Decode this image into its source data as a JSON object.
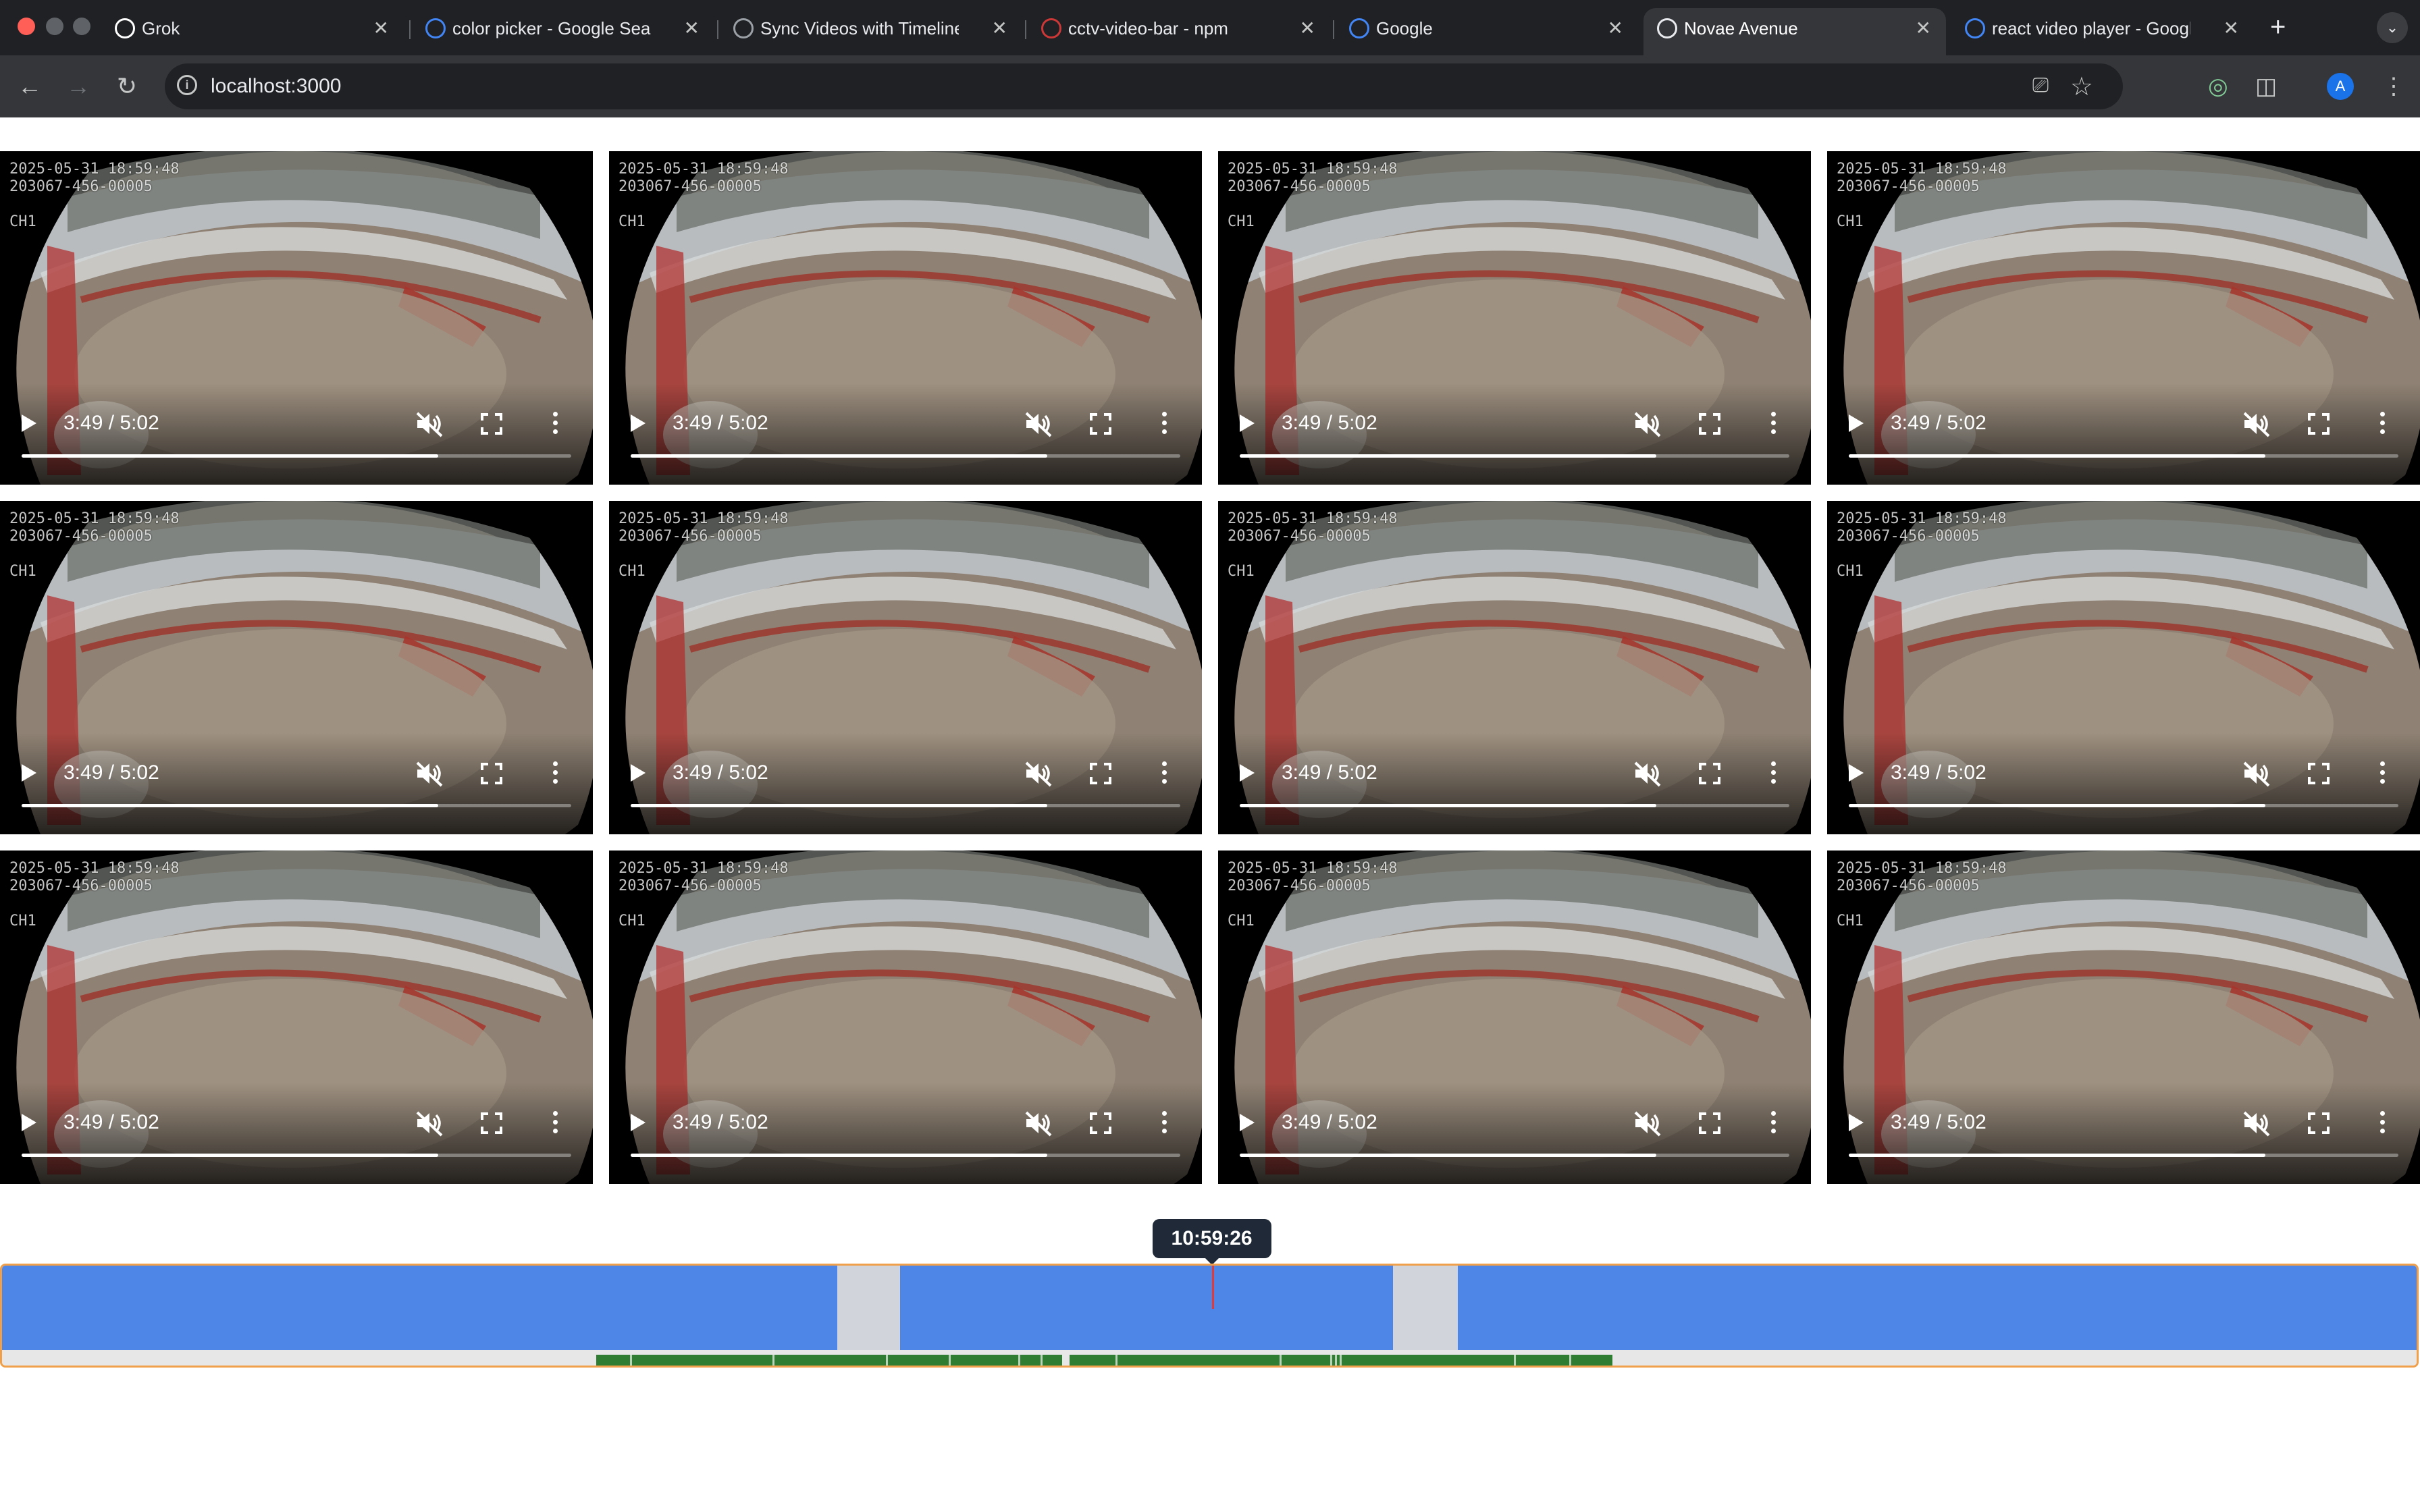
{
  "browser": {
    "tabs": [
      {
        "title": "Grok",
        "active": false
      },
      {
        "title": "color picker - Google Search",
        "active": false
      },
      {
        "title": "Sync Videos with Timeline",
        "active": false
      },
      {
        "title": "cctv-video-bar - npm",
        "active": false
      },
      {
        "title": "Google",
        "active": false
      },
      {
        "title": "Novae Avenue",
        "active": true
      },
      {
        "title": "react video player - Google Search",
        "active": false
      }
    ],
    "new_tab_label": "+",
    "url": "localhost:3000",
    "profile_initial": "A",
    "icons": [
      "back-icon",
      "forward-icon",
      "reload-icon",
      "site-info-icon",
      "install-app-icon",
      "bookmark-star-icon",
      "extension-icon",
      "puzzle-icon",
      "menu-icon"
    ]
  },
  "video_grid": {
    "rows": 3,
    "columns": 4,
    "overlay": {
      "timestamp": "2025-05-31 18:59:48",
      "device_id": "203067-456-00005",
      "channel": "CH1"
    },
    "player": {
      "time_display": "3:49 / 5:02",
      "current_seconds": 229,
      "duration_seconds": 302,
      "muted": true
    },
    "videos": [
      {
        "id": 1
      },
      {
        "id": 2
      },
      {
        "id": 3
      },
      {
        "id": 4
      },
      {
        "id": 5
      },
      {
        "id": 6
      },
      {
        "id": 7
      },
      {
        "id": 8
      },
      {
        "id": 9
      },
      {
        "id": 10
      },
      {
        "id": 11
      },
      {
        "id": 12
      }
    ]
  },
  "timeline": {
    "hover_time": "10:59:26",
    "cursor_fraction": 0.501,
    "available_segments": [
      {
        "start": 0.0,
        "end": 0.346
      },
      {
        "start": 0.372,
        "end": 0.576
      },
      {
        "start": 0.603,
        "end": 1.0
      }
    ],
    "recording_segments": [
      {
        "start": 0.246,
        "end": 0.439
      },
      {
        "start": 0.442,
        "end": 0.667
      }
    ],
    "recording_gaps": [
      0.26,
      0.319,
      0.366,
      0.392,
      0.421,
      0.43,
      0.461,
      0.529,
      0.55,
      0.552,
      0.554,
      0.626,
      0.649
    ],
    "colors": {
      "available": "#4e86e8",
      "unavailable": "#d1d5db",
      "recording": "#2e7d32",
      "cursor": "#e53935",
      "frame": "#f0a04b"
    }
  }
}
